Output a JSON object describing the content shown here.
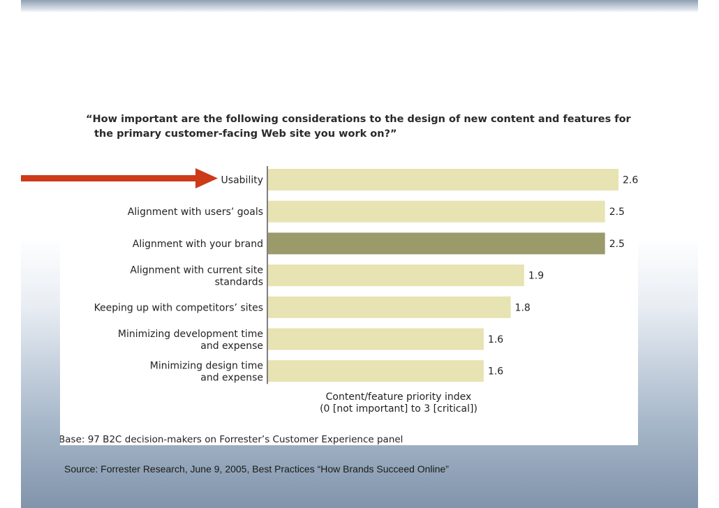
{
  "question": {
    "line1": "“How important are the following considerations to the design of new content and features for",
    "line2": "the primary customer-facing Web site you work on?”"
  },
  "base_note": "Base: 97 B2C decision-makers on Forrester’s Customer Experience panel",
  "source": "Source: Forrester Research, June 9, 2005, Best Practices “How Brands Succeed Online”",
  "colors": {
    "bar": "#e7e3b2",
    "bar_highlight": "#9b9a6b",
    "arrow": "#cc3a18",
    "axis": "#555555"
  },
  "chart_data": {
    "type": "bar",
    "orientation": "horizontal",
    "categories": [
      [
        "Usability"
      ],
      [
        "Alignment with users’ goals"
      ],
      [
        "Alignment with your brand"
      ],
      [
        "Alignment with current site",
        "standards"
      ],
      [
        "Keeping up with competitors’ sites"
      ],
      [
        "Minimizing development time",
        "and expense"
      ],
      [
        "Minimizing design time",
        "and expense"
      ]
    ],
    "values": [
      2.6,
      2.5,
      2.5,
      1.9,
      1.8,
      1.6,
      1.6
    ],
    "value_labels": [
      "2.6",
      "2.5",
      "2.5",
      "1.9",
      "1.8",
      "1.6",
      "1.6"
    ],
    "highlighted_index": 2,
    "arrow_index": 0,
    "xlabel": [
      "Content/feature priority index",
      "(0 [not important] to 3 [critical])"
    ],
    "xlim": [
      0,
      2.6
    ],
    "grid": false,
    "legend": "none"
  }
}
